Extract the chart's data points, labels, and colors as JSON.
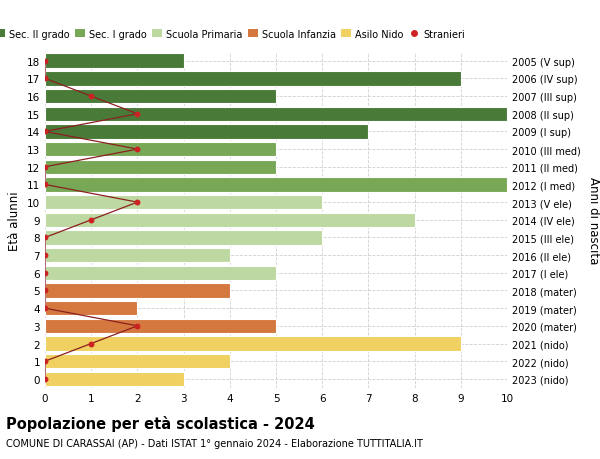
{
  "ages": [
    18,
    17,
    16,
    15,
    14,
    13,
    12,
    11,
    10,
    9,
    8,
    7,
    6,
    5,
    4,
    3,
    2,
    1,
    0
  ],
  "years": [
    "2005 (V sup)",
    "2006 (IV sup)",
    "2007 (III sup)",
    "2008 (II sup)",
    "2009 (I sup)",
    "2010 (III med)",
    "2011 (II med)",
    "2012 (I med)",
    "2013 (V ele)",
    "2014 (IV ele)",
    "2015 (III ele)",
    "2016 (II ele)",
    "2017 (I ele)",
    "2018 (mater)",
    "2019 (mater)",
    "2020 (mater)",
    "2021 (nido)",
    "2022 (nido)",
    "2023 (nido)"
  ],
  "bar_values": [
    3,
    9,
    5,
    10,
    7,
    5,
    5,
    10,
    6,
    8,
    6,
    4,
    5,
    4,
    2,
    5,
    9,
    4,
    3
  ],
  "bar_colors": [
    "#4a7a38",
    "#4a7a38",
    "#4a7a38",
    "#4a7a38",
    "#4a7a38",
    "#78a855",
    "#78a855",
    "#78a855",
    "#bdd8a0",
    "#bdd8a0",
    "#bdd8a0",
    "#bdd8a0",
    "#bdd8a0",
    "#d47840",
    "#d47840",
    "#d47840",
    "#f0d060",
    "#f0d060",
    "#f0d060"
  ],
  "stranieri_x": [
    0,
    0,
    1,
    2,
    0,
    2,
    0,
    0,
    2,
    1,
    0,
    0,
    0,
    0,
    0,
    2,
    1,
    0,
    0
  ],
  "legend_labels": [
    "Sec. II grado",
    "Sec. I grado",
    "Scuola Primaria",
    "Scuola Infanzia",
    "Asilo Nido",
    "Stranieri"
  ],
  "legend_colors": [
    "#4a7a38",
    "#78a855",
    "#bdd8a0",
    "#d47840",
    "#f0d060",
    "#cc2222"
  ],
  "title": "Popolazione per età scolastica - 2024",
  "subtitle": "COMUNE DI CARASSAI (AP) - Dati ISTAT 1° gennaio 2024 - Elaborazione TUTTITALIA.IT",
  "ylabel": "Età alunni",
  "ylabel2": "Anni di nascita",
  "xlim": [
    0,
    10
  ],
  "background_color": "#ffffff",
  "grid_color": "#d0d0d0",
  "stranieri_line_color": "#8b2020",
  "stranieri_dot_color": "#cc2222"
}
